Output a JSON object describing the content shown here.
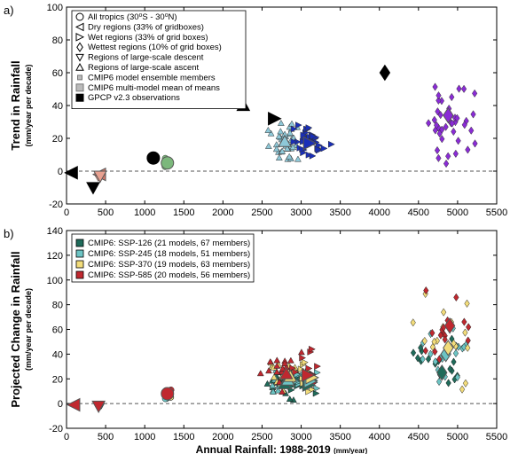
{
  "chart_data": [
    {
      "panel": "a)",
      "type": "scatter",
      "ylabel_main": "Trend in Rainfall",
      "ylabel_sub": "(mm/year per decade)",
      "xlim": [
        0,
        5500
      ],
      "ylim": [
        -20,
        100
      ],
      "xticks": [
        "0",
        "500",
        "1000",
        "1500",
        "2000",
        "2500",
        "3000",
        "3500",
        "4000",
        "4500",
        "5000",
        "5500"
      ],
      "yticks": [
        "-20",
        "0",
        "20",
        "40",
        "60",
        "80",
        "100"
      ],
      "legend": [
        {
          "label": "All tropics (30⁰S - 30⁰N)",
          "marker": "circle"
        },
        {
          "label": "Dry regions (33% of gridboxes)",
          "marker": "tri-left"
        },
        {
          "label": "Wet regions (33% of grid boxes)",
          "marker": "tri-right"
        },
        {
          "label": "Wettest regions (10% of grid boxes)",
          "marker": "diamond"
        },
        {
          "label": "Regions of large-scale descent",
          "marker": "tri-down"
        },
        {
          "label": "Regions of large-scale ascent",
          "marker": "tri-up"
        },
        {
          "label": "CMIP6 model ensemble members",
          "marker": "small-square"
        },
        {
          "label": "CMIP6 multi-model mean of means",
          "marker": "square"
        },
        {
          "label": "GPCP v2.3 observations",
          "marker": "black-square"
        }
      ],
      "colors": {
        "all": "#7cb87c",
        "dry": "#e07a6a",
        "wet": "#1a2fb8",
        "wettest": "#8a2bd6",
        "descent": "#e8a090",
        "ascent": "#8ec8d8",
        "obs": "#000000"
      },
      "observations": [
        {
          "region": "dry",
          "x": 60,
          "y": -1
        },
        {
          "region": "descent",
          "x": 340,
          "y": -10
        },
        {
          "region": "all",
          "x": 1110,
          "y": 8
        },
        {
          "region": "ascent",
          "x": 2260,
          "y": 40
        },
        {
          "region": "wet",
          "x": 2660,
          "y": 32
        },
        {
          "region": "wettest",
          "x": 4070,
          "y": 60
        }
      ],
      "multi_model_means": [
        {
          "region": "dry",
          "x": 420,
          "y": -2
        },
        {
          "region": "descent",
          "x": 430,
          "y": -3
        },
        {
          "region": "all",
          "x": 1290,
          "y": 5
        },
        {
          "region": "ascent",
          "x": 2790,
          "y": 18
        },
        {
          "region": "wet",
          "x": 3110,
          "y": 17
        },
        {
          "region": "wettest",
          "x": 4880,
          "y": 34
        }
      ]
    },
    {
      "panel": "b)",
      "type": "scatter",
      "ylabel_main": "Projected Change in Rainfall",
      "ylabel_sub": "(mm/year per decade)",
      "xlabel_main": "Annual Rainfall: 1988-2019",
      "xlabel_sub": "(mm/year)",
      "xlim": [
        0,
        5500
      ],
      "ylim": [
        -20,
        140
      ],
      "xticks": [
        "0",
        "500",
        "1000",
        "1500",
        "2000",
        "2500",
        "3000",
        "3500",
        "4000",
        "4500",
        "5000",
        "5500"
      ],
      "yticks": [
        "-20",
        "0",
        "20",
        "40",
        "60",
        "80",
        "100",
        "120",
        "140"
      ],
      "legend": [
        {
          "label": "CMIP6: SSP-126 (21 models, 67 members)",
          "color": "#1f6b5a"
        },
        {
          "label": "CMIP6: SSP-245 (18 models, 51 members)",
          "color": "#6cc4c4"
        },
        {
          "label": "CMIP6: SSP-370 (19 models, 63 members)",
          "color": "#f2dc7a"
        },
        {
          "label": "CMIP6: SSP-585 (20 models, 56 members)",
          "color": "#c0282f"
        }
      ],
      "multi_model_means": [
        {
          "scenario": "SSP-585",
          "region": "dry",
          "x": 90,
          "y": -1
        },
        {
          "scenario": "SSP-585",
          "region": "descent",
          "x": 410,
          "y": -2
        },
        {
          "scenario": "SSP-585",
          "region": "all",
          "x": 1290,
          "y": 8
        },
        {
          "scenario": "SSP-126",
          "region": "ascent",
          "x": 2790,
          "y": 16
        },
        {
          "scenario": "SSP-245",
          "region": "ascent",
          "x": 2830,
          "y": 19
        },
        {
          "scenario": "SSP-370",
          "region": "ascent",
          "x": 2860,
          "y": 22
        },
        {
          "scenario": "SSP-585",
          "region": "ascent",
          "x": 2810,
          "y": 24
        },
        {
          "scenario": "SSP-126",
          "region": "wet",
          "x": 3100,
          "y": 15
        },
        {
          "scenario": "SSP-245",
          "region": "wet",
          "x": 3120,
          "y": 18
        },
        {
          "scenario": "SSP-370",
          "region": "wet",
          "x": 3140,
          "y": 21
        },
        {
          "scenario": "SSP-585",
          "region": "wet",
          "x": 3090,
          "y": 23
        },
        {
          "scenario": "SSP-126",
          "region": "wettest",
          "x": 4800,
          "y": 25
        },
        {
          "scenario": "SSP-245",
          "region": "wettest",
          "x": 4850,
          "y": 40
        },
        {
          "scenario": "SSP-370",
          "region": "wettest",
          "x": 4880,
          "y": 45
        },
        {
          "scenario": "SSP-585",
          "region": "wettest",
          "x": 4900,
          "y": 63
        }
      ]
    }
  ]
}
